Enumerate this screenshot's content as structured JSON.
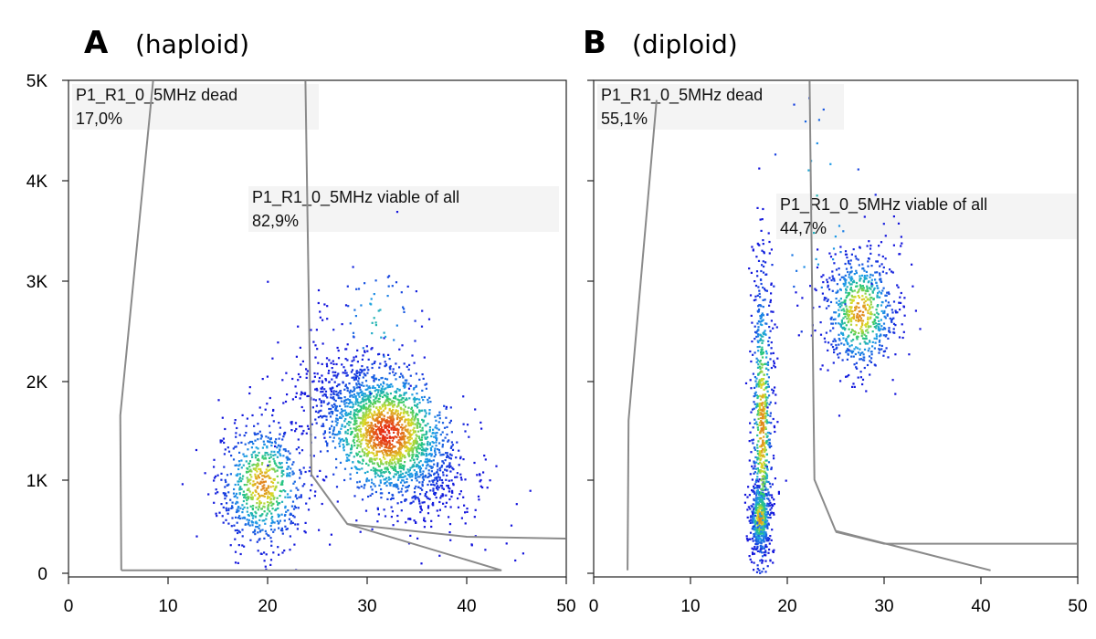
{
  "chart_data": [
    {
      "type": "scatter",
      "panel_letter": "A",
      "panel_subtitle": "(haploid)",
      "x_ticks": [
        "0",
        "10",
        "20",
        "30",
        "40",
        "50"
      ],
      "y_ticks": [
        "0",
        "1K",
        "2K",
        "3K",
        "4K",
        "5K"
      ],
      "xlim": [
        0,
        50
      ],
      "ylim": [
        0,
        5000
      ],
      "gates": [
        {
          "name": "P1_R1_0_5MHz dead",
          "percent": "17,0%",
          "polygon": [
            [
              5.3,
              30
            ],
            [
              5.2,
              1600
            ],
            [
              8.5,
              5000
            ]
          ]
        },
        {
          "name": "P1_R1_0_5MHz viable of all",
          "percent": "82,9%",
          "polygon": [
            [
              23.8,
              5000
            ],
            [
              24.4,
              1000
            ],
            [
              28,
              500
            ],
            [
              43.5,
              30
            ],
            [
              5.3,
              30
            ]
          ]
        },
        {
          "name": "",
          "percent": "",
          "polygon": [
            [
              28,
              500
            ],
            [
              40,
              370
            ],
            [
              51,
              350
            ]
          ]
        }
      ],
      "clusters": [
        {
          "cx": 19.5,
          "cy": 900,
          "sx": 2.3,
          "sy": 340,
          "n": 750,
          "rho": 0.1
        },
        {
          "cx": 32,
          "cy": 1420,
          "sx": 3.8,
          "sy": 390,
          "n": 2200,
          "rho": -0.55
        },
        {
          "cx": 31,
          "cy": 2550,
          "sx": 2.5,
          "sy": 380,
          "n": 70,
          "rho": 0
        }
      ]
    },
    {
      "type": "scatter",
      "panel_letter": "B",
      "panel_subtitle": "(diploid)",
      "x_ticks": [
        "0",
        "10",
        "20",
        "30",
        "40",
        "50"
      ],
      "y_ticks": [
        "0",
        "1K",
        "2K",
        "3K",
        "4K",
        "5K"
      ],
      "xlim": [
        0,
        50
      ],
      "ylim": [
        0,
        5000
      ],
      "gates": [
        {
          "name": "P1_R1_0_5MHz dead",
          "percent": "55,1%",
          "polygon": [
            [
              3.5,
              30
            ],
            [
              3.6,
              1550
            ],
            [
              6.5,
              4800
            ]
          ]
        },
        {
          "name": "P1_R1_0_5MHz viable of all",
          "percent": "44,7%",
          "polygon": [
            [
              22.3,
              5000
            ],
            [
              22.8,
              950
            ],
            [
              25,
              430
            ],
            [
              41,
              30
            ]
          ]
        },
        {
          "name": "",
          "percent": "",
          "polygon": [
            [
              25,
              420
            ],
            [
              30,
              300
            ],
            [
              51,
              300
            ]
          ]
        }
      ],
      "clusters": [
        {
          "cx": 17.2,
          "cy": 560,
          "sx": 0.55,
          "sy": 180,
          "n": 450,
          "rho": 0
        },
        {
          "cx": 17.4,
          "cy": 1500,
          "sx": 0.55,
          "sy": 900,
          "n": 700,
          "rho": 0
        },
        {
          "cx": 27.5,
          "cy": 2650,
          "sx": 2.0,
          "sy": 330,
          "n": 700,
          "rho": 0
        },
        {
          "cx": 23,
          "cy": 3700,
          "sx": 3.5,
          "sy": 900,
          "n": 45,
          "rho": 0
        }
      ]
    }
  ]
}
